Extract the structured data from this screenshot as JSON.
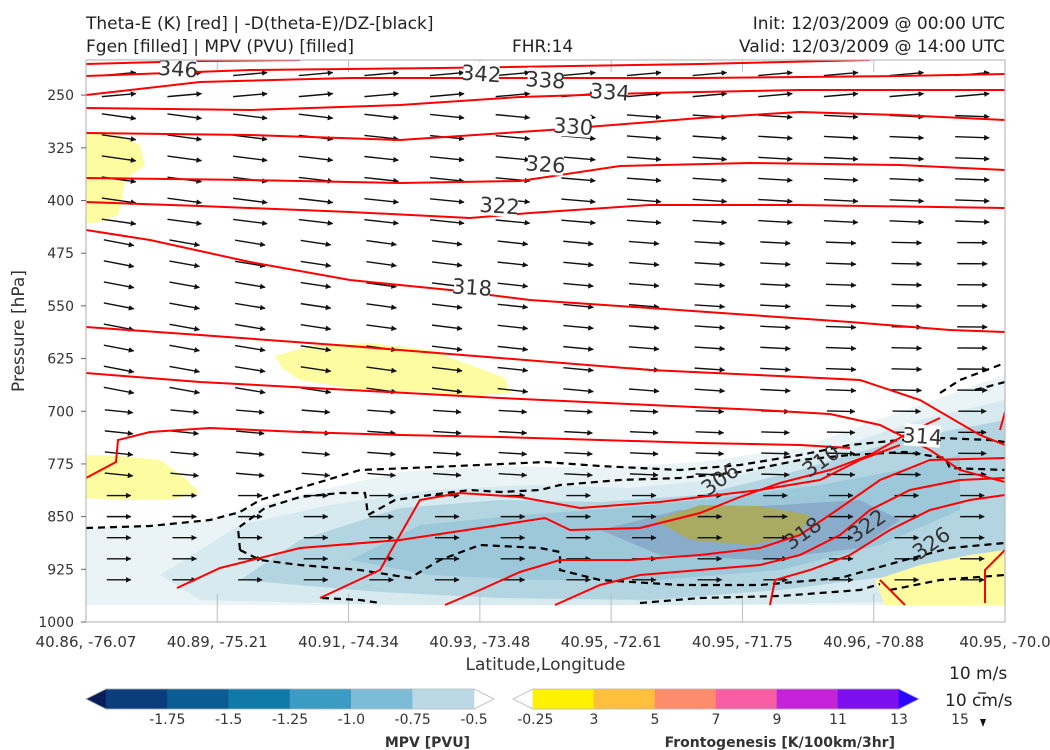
{
  "header": {
    "line1_left": "Theta-E (K) [red] | -D(theta-E)/DZ-[black]",
    "line2_left": "Fgen [filled] | MPV (PVU) [filled]",
    "fhr": "FHR:14",
    "init": "Init: 12/03/2009 @ 00:00 UTC",
    "valid": "Valid: 12/03/2009 @ 14:00 UTC"
  },
  "chart_data": {
    "type": "cross-section",
    "xlabel": "Latitude,Longitude",
    "ylabel": "Pressure [hPa]",
    "x_ticks": [
      "40.86, -76.07",
      "40.89, -75.21",
      "40.91, -74.34",
      "40.93, -73.48",
      "40.95, -72.61",
      "40.95, -71.75",
      "40.96, -70.88",
      "40.95, -70.0"
    ],
    "y_ticks": [
      250,
      325,
      400,
      475,
      550,
      625,
      700,
      775,
      850,
      925,
      1000
    ],
    "ylim": [
      1000,
      200
    ],
    "theta_e_labels": [
      {
        "label": "346",
        "x": 0.1,
        "p": 213
      },
      {
        "label": "342",
        "x": 0.43,
        "p": 220
      },
      {
        "label": "338",
        "x": 0.5,
        "p": 229
      },
      {
        "label": "334",
        "x": 0.57,
        "p": 246
      },
      {
        "label": "330",
        "x": 0.53,
        "p": 295
      },
      {
        "label": "326",
        "x": 0.5,
        "p": 349
      },
      {
        "label": "322",
        "x": 0.45,
        "p": 408
      },
      {
        "label": "318",
        "x": 0.42,
        "p": 524
      },
      {
        "label": "306",
        "x": 0.69,
        "p": 797
      },
      {
        "label": "310",
        "x": 0.8,
        "p": 771
      },
      {
        "label": "314",
        "x": 0.91,
        "p": 736
      },
      {
        "label": "318",
        "x": 0.78,
        "p": 874
      },
      {
        "label": "322",
        "x": 0.85,
        "p": 863
      },
      {
        "label": "326",
        "x": 0.92,
        "p": 888
      }
    ],
    "mpv_colorbar": {
      "title": "MPV [PVU]",
      "ticks": [
        "-1.75",
        "-1.5",
        "-1.25",
        "-1.0",
        "-0.75",
        "-0.5",
        "-0.25"
      ],
      "colors": [
        "#081d58",
        "#0b3d7a",
        "#0b5c93",
        "#1179a8",
        "#3b9bc2",
        "#7dbcd6",
        "#bad9e5",
        "#ffffff"
      ]
    },
    "fgen_colorbar": {
      "title": "Frontogenesis [K/100km/3hr]",
      "ticks": [
        "3",
        "5",
        "7",
        "9",
        "11",
        "13",
        "15"
      ],
      "colors": [
        "#ffffff",
        "#fff200",
        "#fdbf3c",
        "#fc8c6c",
        "#f85ca3",
        "#c523d9",
        "#7b0ff0",
        "#2a05ff"
      ]
    },
    "vector_key": {
      "horizontal": "10 m/s",
      "vertical": "10 cm/s"
    },
    "colors": {
      "theta_e": "#ff0000",
      "gradient": "#000000"
    }
  }
}
